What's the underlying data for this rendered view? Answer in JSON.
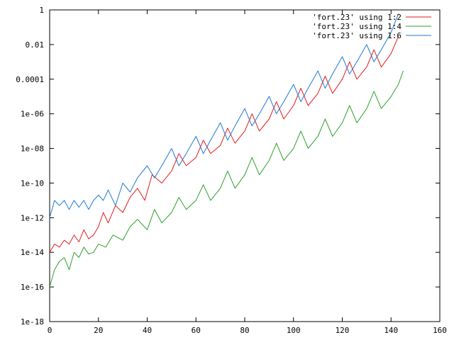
{
  "chart_data": {
    "type": "line",
    "title": "",
    "xlabel": "",
    "ylabel": "",
    "xlim": [
      0,
      160
    ],
    "ylim": [
      1e-18,
      1
    ],
    "yscale": "log",
    "grid": false,
    "legend_position": "top-right",
    "x_ticks": [
      "0",
      "20",
      "40",
      "60",
      "80",
      "100",
      "120",
      "140",
      "160"
    ],
    "y_ticks": [
      "1e-18",
      "1e-16",
      "1e-14",
      "1e-12",
      "1e-10",
      "1e-08",
      "1e-06",
      "0.0001",
      "0.01",
      "1"
    ],
    "series": [
      {
        "name": "'fort.23' using 1:2",
        "color": "#e41a1c",
        "x": [
          0,
          2,
          4,
          6,
          8,
          10,
          12,
          14,
          16,
          18,
          20,
          22,
          24,
          27,
          30,
          33,
          36,
          39,
          42,
          46,
          50,
          53,
          56,
          60,
          63,
          66,
          70,
          73,
          76,
          80,
          83,
          86,
          90,
          93,
          96,
          100,
          103,
          106,
          110,
          113,
          116,
          120,
          123,
          126,
          130,
          133,
          136,
          140,
          143
        ],
        "y": [
          1e-14,
          3e-14,
          2e-14,
          5e-14,
          3e-14,
          1e-13,
          4e-14,
          2e-13,
          6e-14,
          1e-13,
          3e-13,
          2e-12,
          5e-13,
          5e-12,
          2e-12,
          1.5e-11,
          5e-11,
          1e-11,
          3e-10,
          1e-10,
          5e-10,
          5e-09,
          1e-09,
          3e-09,
          3e-08,
          5e-09,
          1.5e-08,
          1.5e-07,
          2e-08,
          1e-07,
          1e-06,
          1e-07,
          5e-07,
          5e-06,
          5e-07,
          3e-06,
          3e-05,
          3e-06,
          1.5e-05,
          0.00015,
          1.5e-05,
          0.0001,
          0.001,
          0.0001,
          0.0005,
          0.005,
          0.0005,
          0.003,
          0.03
        ]
      },
      {
        "name": "'fort.23' using 1:4",
        "color": "#2ca02c",
        "x": [
          0,
          2,
          4,
          6,
          8,
          10,
          12,
          14,
          16,
          18,
          20,
          23,
          26,
          30,
          33,
          36,
          40,
          43,
          46,
          50,
          53,
          56,
          60,
          63,
          66,
          70,
          73,
          76,
          80,
          83,
          86,
          90,
          93,
          96,
          100,
          103,
          106,
          110,
          113,
          116,
          120,
          123,
          126,
          130,
          133,
          136,
          140,
          143,
          145
        ],
        "y": [
          1e-16,
          1e-15,
          3e-15,
          5e-15,
          1e-15,
          1e-14,
          5e-15,
          2e-14,
          8e-15,
          1e-14,
          3e-14,
          2e-14,
          1e-13,
          5e-14,
          3e-13,
          8e-13,
          2e-13,
          3e-12,
          5e-13,
          2e-12,
          1.5e-11,
          3e-12,
          1e-11,
          8e-11,
          1e-11,
          5e-11,
          5e-10,
          5e-11,
          3e-10,
          3e-09,
          3e-10,
          2e-09,
          2e-08,
          2e-09,
          1e-08,
          1e-07,
          1e-08,
          5e-08,
          5e-07,
          5e-08,
          3e-07,
          3e-06,
          3e-07,
          2e-06,
          2e-05,
          2e-06,
          1e-05,
          5e-05,
          0.0003
        ]
      },
      {
        "name": "'fort.23' using 1:6",
        "color": "#1f78d4",
        "x": [
          0,
          2,
          4,
          6,
          8,
          10,
          12,
          14,
          16,
          18,
          20,
          22,
          24,
          27,
          30,
          33,
          36,
          40,
          43,
          46,
          50,
          53,
          56,
          60,
          63,
          66,
          70,
          73,
          76,
          80,
          83,
          86,
          90,
          93,
          96,
          100,
          103,
          106,
          110,
          113,
          116,
          120,
          123,
          126,
          130,
          133,
          136,
          140,
          143
        ],
        "y": [
          1e-12,
          1e-11,
          5e-12,
          1e-11,
          3e-12,
          1e-11,
          4e-12,
          1e-11,
          3e-12,
          1e-11,
          2e-11,
          1e-11,
          4e-11,
          5e-12,
          1e-10,
          3e-11,
          2e-10,
          1e-09,
          2e-10,
          1e-09,
          1e-08,
          1e-09,
          5e-09,
          5e-08,
          5e-09,
          3e-08,
          3e-07,
          3e-08,
          2e-07,
          2e-06,
          2e-07,
          1e-06,
          1e-05,
          1e-06,
          5e-06,
          5e-05,
          5e-06,
          3e-05,
          0.0003,
          3e-05,
          0.0002,
          0.002,
          0.0002,
          0.001,
          0.01,
          0.001,
          0.005,
          0.05,
          0.6
        ]
      }
    ]
  }
}
